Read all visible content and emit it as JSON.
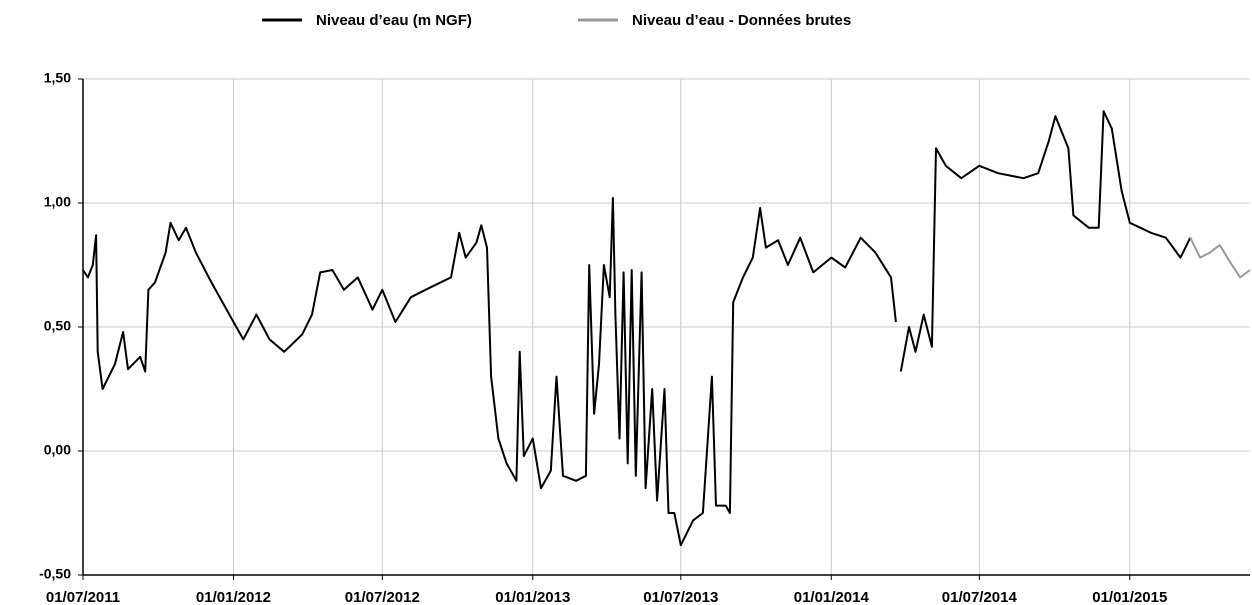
{
  "chart_data": {
    "type": "line",
    "xlim": [
      "2011-07-01",
      "2015-05-28"
    ],
    "xticks": [
      {
        "value": "2011-07-01",
        "label": "01/07/2011"
      },
      {
        "value": "2012-01-01",
        "label": "01/01/2012"
      },
      {
        "value": "2012-07-01",
        "label": "01/07/2012"
      },
      {
        "value": "2013-01-01",
        "label": "01/01/2013"
      },
      {
        "value": "2013-07-01",
        "label": "01/07/2013"
      },
      {
        "value": "2014-01-01",
        "label": "01/01/2014"
      },
      {
        "value": "2014-07-01",
        "label": "01/07/2014"
      },
      {
        "value": "2015-01-01",
        "label": "01/01/2015"
      }
    ],
    "ylim": [
      -0.5,
      1.5
    ],
    "yticks": [
      {
        "value": -0.5,
        "label": "-0,50"
      },
      {
        "value": 0,
        "label": "0,00"
      },
      {
        "value": 0.5,
        "label": "0,50"
      },
      {
        "value": 1,
        "label": "1,00"
      },
      {
        "value": 1.5,
        "label": "1,50"
      }
    ],
    "grid": true,
    "legend": "top",
    "series": [
      {
        "name": "Niveau d’eau (m NGF)",
        "color": "#000000",
        "x": [
          "2011-07-01",
          "2011-07-07",
          "2011-07-13",
          "2011-07-17",
          "2011-07-19",
          "2011-07-25",
          "2011-08-09",
          "2011-08-19",
          "2011-08-25",
          "2011-09-09",
          "2011-09-15",
          "2011-09-19",
          "2011-09-27",
          "2011-10-10",
          "2011-10-16",
          "2011-10-26",
          "2011-11-04",
          "2011-11-16",
          "2011-12-05",
          "2012-01-01",
          "2012-01-13",
          "2012-01-29",
          "2012-02-14",
          "2012-03-03",
          "2012-03-25",
          "2012-04-06",
          "2012-04-16",
          "2012-05-01",
          "2012-05-15",
          "2012-06-01",
          "2012-06-19",
          "2012-07-01",
          "2012-07-17",
          "2012-08-05",
          "2012-08-29",
          "2012-09-23",
          "2012-10-03",
          "2012-10-11",
          "2012-10-24",
          "2012-10-30",
          "2012-11-06",
          "2012-11-11",
          "2012-11-20",
          "2012-11-30",
          "2012-12-12",
          "2012-12-16",
          "2012-12-21",
          "2013-01-01",
          "2013-01-11",
          "2013-01-23",
          "2013-01-30",
          "2013-02-07",
          "2013-02-23",
          "2013-03-07",
          "2013-03-11",
          "2013-03-17",
          "2013-03-23",
          "2013-03-29",
          "2013-04-05",
          "2013-04-09",
          "2013-04-12",
          "2013-04-17",
          "2013-04-22",
          "2013-04-27",
          "2013-05-02",
          "2013-05-07",
          "2013-05-14",
          "2013-05-19",
          "2013-05-27",
          "2013-06-02",
          "2013-06-11",
          "2013-06-16",
          "2013-06-23",
          "2013-07-01",
          "2013-07-16",
          "2013-07-28",
          "2013-08-08",
          "2013-08-13",
          "2013-08-25",
          "2013-08-30",
          "2013-09-03",
          "2013-09-15",
          "2013-09-27",
          "2013-10-06",
          "2013-10-13",
          "2013-10-28",
          "2013-11-09",
          "2013-11-24",
          "2013-12-10",
          "2014-01-01",
          "2014-01-18",
          "2014-02-06",
          "2014-02-24",
          "2014-03-15",
          "2014-03-21",
          "2014-03-24",
          "2014-03-27",
          "2014-04-06",
          "2014-04-14",
          "2014-04-24",
          "2014-05-04",
          "2014-05-09",
          "2014-05-21",
          "2014-06-09",
          "2014-07-01",
          "2014-07-24",
          "2014-08-24",
          "2014-09-11",
          "2014-09-24",
          "2014-10-02",
          "2014-10-18",
          "2014-10-24",
          "2014-11-12",
          "2014-11-24",
          "2014-11-30",
          "2014-12-10",
          "2014-12-22",
          "2015-01-01",
          "2015-01-27",
          "2015-02-14",
          "2015-03-04",
          "2015-03-16"
        ],
        "values": [
          0.73,
          0.7,
          0.75,
          0.87,
          0.4,
          0.25,
          0.35,
          0.48,
          0.33,
          0.38,
          0.32,
          0.65,
          0.68,
          0.8,
          0.92,
          0.85,
          0.9,
          0.8,
          0.68,
          0.52,
          0.45,
          0.55,
          0.45,
          0.4,
          0.47,
          0.55,
          0.72,
          0.73,
          0.65,
          0.7,
          0.57,
          0.65,
          0.52,
          0.62,
          0.66,
          0.7,
          0.88,
          0.78,
          0.84,
          0.91,
          0.82,
          0.3,
          0.05,
          -0.05,
          -0.12,
          0.4,
          -0.02,
          0.05,
          -0.15,
          -0.08,
          0.3,
          -0.1,
          -0.12,
          -0.1,
          0.75,
          0.15,
          0.35,
          0.75,
          0.62,
          1.02,
          0.55,
          0.05,
          0.72,
          -0.05,
          0.73,
          -0.1,
          0.72,
          -0.15,
          0.25,
          -0.2,
          0.25,
          -0.25,
          -0.25,
          -0.38,
          -0.28,
          -0.25,
          0.3,
          -0.22,
          -0.22,
          -0.25,
          0.6,
          0.7,
          0.78,
          0.98,
          0.82,
          0.85,
          0.75,
          0.86,
          0.72,
          0.78,
          0.74,
          0.86,
          0.8,
          0.7,
          0.52,
          null,
          0.32,
          0.5,
          0.4,
          0.55,
          0.42,
          1.22,
          1.15,
          1.1,
          1.15,
          1.12,
          1.1,
          1.12,
          1.25,
          1.35,
          1.22,
          0.95,
          0.9,
          0.9,
          1.37,
          1.3,
          1.05,
          0.92,
          0.88,
          0.86,
          0.78,
          0.86
        ]
      },
      {
        "name": "Niveau d’eau - Données brutes",
        "color": "#999999",
        "x": [
          "2015-03-16",
          "2015-03-28",
          "2015-04-09",
          "2015-04-21",
          "2015-05-06",
          "2015-05-16",
          "2015-05-28"
        ],
        "values": [
          0.86,
          0.78,
          0.8,
          0.83,
          0.75,
          0.7,
          0.73
        ]
      }
    ]
  }
}
